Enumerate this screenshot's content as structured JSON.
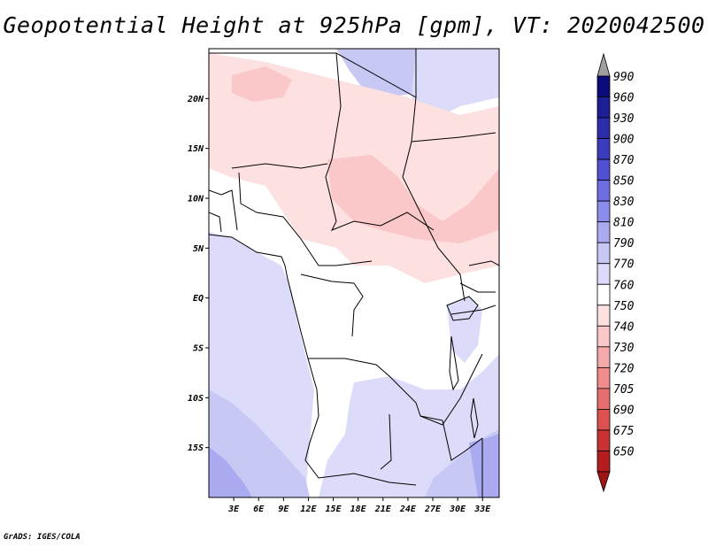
{
  "title": "Geopotential Height at 925hPa [gpm], VT: 2020042500",
  "credit": "GrADS: IGES/COLA",
  "map": {
    "lon_range": [
      0,
      35
    ],
    "lat_range": [
      -20,
      25
    ],
    "lat_ticks": [
      {
        "value": 20,
        "label": "20N"
      },
      {
        "value": 15,
        "label": "15N"
      },
      {
        "value": 10,
        "label": "10N"
      },
      {
        "value": 5,
        "label": "5N"
      },
      {
        "value": 0,
        "label": "EQ"
      },
      {
        "value": -5,
        "label": "5S"
      },
      {
        "value": -10,
        "label": "10S"
      },
      {
        "value": -15,
        "label": "15S"
      }
    ],
    "lon_ticks": [
      {
        "value": 3,
        "label": "3E"
      },
      {
        "value": 6,
        "label": "6E"
      },
      {
        "value": 9,
        "label": "9E"
      },
      {
        "value": 12,
        "label": "12E"
      },
      {
        "value": 15,
        "label": "15E"
      },
      {
        "value": 18,
        "label": "18E"
      },
      {
        "value": 21,
        "label": "21E"
      },
      {
        "value": 24,
        "label": "24E"
      },
      {
        "value": 27,
        "label": "27E"
      },
      {
        "value": 30,
        "label": "30E"
      },
      {
        "value": 33,
        "label": "33E"
      }
    ]
  },
  "colorbar": {
    "levels": [
      {
        "label": "990",
        "color": "#0a0a78"
      },
      {
        "label": "960",
        "color": "#1e1e96"
      },
      {
        "label": "930",
        "color": "#2d2daa"
      },
      {
        "label": "900",
        "color": "#3c3cbe"
      },
      {
        "label": "870",
        "color": "#5050d2"
      },
      {
        "label": "850",
        "color": "#6e6ee1"
      },
      {
        "label": "830",
        "color": "#8c8ceb"
      },
      {
        "label": "810",
        "color": "#aaaaf0"
      },
      {
        "label": "790",
        "color": "#c8c8f5"
      },
      {
        "label": "770",
        "color": "#dcdcfa"
      },
      {
        "label": "760",
        "color": "#ffffff"
      },
      {
        "label": "750",
        "color": "#fde0e0"
      },
      {
        "label": "740",
        "color": "#fac8c8"
      },
      {
        "label": "730",
        "color": "#f5aaaa"
      },
      {
        "label": "720",
        "color": "#f08c8c"
      },
      {
        "label": "705",
        "color": "#e66e6e"
      },
      {
        "label": "690",
        "color": "#dc5050"
      },
      {
        "label": "675",
        "color": "#c83232"
      },
      {
        "label": "650",
        "color": "#b41e1e"
      }
    ],
    "top_arrow_color": "#a0a0a0",
    "bottom_arrow_color": "#a01414"
  }
}
